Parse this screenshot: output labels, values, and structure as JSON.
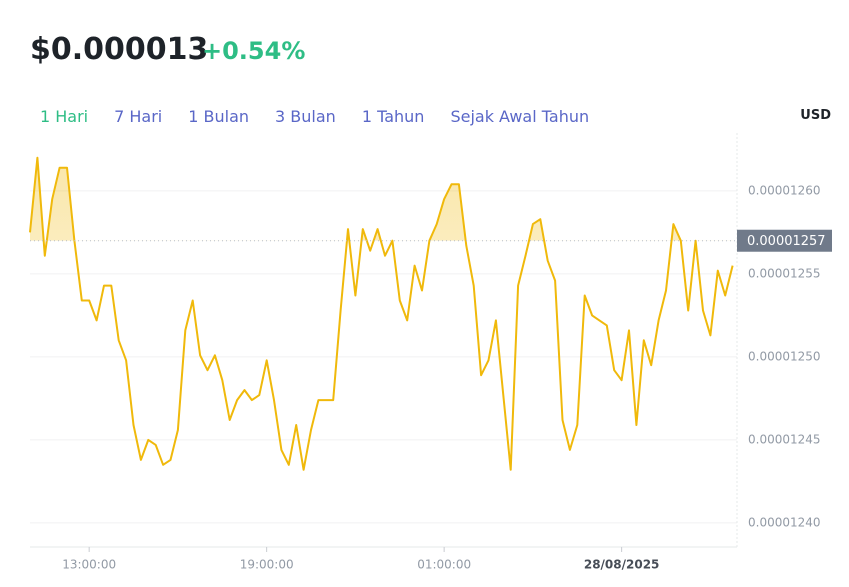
{
  "header": {
    "price": "$0.000013",
    "change": "+0.54%",
    "tabs": [
      "1 Hari",
      "7 Hari",
      "1 Bulan",
      "3 Bulan",
      "1 Tahun",
      "Sejak Awal Tahun"
    ],
    "currency": "USD"
  },
  "chart_data": {
    "type": "line",
    "color": "#f0b90b",
    "grid": true,
    "x": [
      11,
      11.25,
      11.5,
      11.75,
      12,
      12.25,
      12.5,
      12.75,
      13,
      13.25,
      13.5,
      13.75,
      14,
      14.25,
      14.5,
      14.75,
      15,
      15.25,
      15.5,
      15.75,
      16,
      16.25,
      16.5,
      16.75,
      17,
      17.25,
      17.5,
      17.75,
      18,
      18.25,
      18.5,
      18.75,
      19,
      19.25,
      19.5,
      19.75,
      20,
      20.25,
      20.5,
      20.75,
      21,
      21.25,
      21.5,
      21.75,
      22,
      22.25,
      22.5,
      22.75,
      23,
      23.25,
      23.5,
      23.75,
      24,
      24.25,
      24.5,
      24.75,
      25,
      25.25,
      25.5,
      25.75,
      26,
      26.25,
      26.5,
      26.75,
      27,
      27.25,
      27.5,
      27.75,
      28,
      28.25,
      28.5,
      28.75,
      29,
      29.25,
      29.5,
      29.75,
      30,
      30.25,
      30.5,
      30.75,
      31,
      31.25,
      31.5,
      31.75,
      32,
      32.25,
      32.5,
      32.75,
      33,
      33.25,
      33.5,
      33.75,
      34,
      34.25,
      34.5,
      34.75
    ],
    "values": [
      1.2575e-05,
      1.262e-05,
      1.2561e-05,
      1.2595e-05,
      1.2614e-05,
      1.2614e-05,
      1.257e-05,
      1.2534e-05,
      1.2534e-05,
      1.2522e-05,
      1.2543e-05,
      1.2543e-05,
      1.251e-05,
      1.2498e-05,
      1.2459e-05,
      1.2438e-05,
      1.245e-05,
      1.2447e-05,
      1.2435e-05,
      1.2438e-05,
      1.2456e-05,
      1.2516e-05,
      1.2534e-05,
      1.2501e-05,
      1.2492e-05,
      1.2501e-05,
      1.2486e-05,
      1.2462e-05,
      1.2474e-05,
      1.248e-05,
      1.2474e-05,
      1.2477e-05,
      1.2498e-05,
      1.2474e-05,
      1.2444e-05,
      1.2435e-05,
      1.2459e-05,
      1.2432e-05,
      1.2456e-05,
      1.2474e-05,
      1.2474e-05,
      1.2474e-05,
      1.2528e-05,
      1.2577e-05,
      1.2537e-05,
      1.2577e-05,
      1.2564e-05,
      1.2577e-05,
      1.2561e-05,
      1.257e-05,
      1.2534e-05,
      1.2522e-05,
      1.2555e-05,
      1.254e-05,
      1.257e-05,
      1.258e-05,
      1.2595e-05,
      1.2604e-05,
      1.2604e-05,
      1.2567e-05,
      1.2543e-05,
      1.2489e-05,
      1.2498e-05,
      1.2522e-05,
      1.2477e-05,
      1.2432e-05,
      1.2543e-05,
      1.2561e-05,
      1.258e-05,
      1.2583e-05,
      1.2558e-05,
      1.2546e-05,
      1.2462e-05,
      1.2444e-05,
      1.2459e-05,
      1.2537e-05,
      1.2525e-05,
      1.2522e-05,
      1.2519e-05,
      1.2492e-05,
      1.2486e-05,
      1.2516e-05,
      1.2459e-05,
      1.251e-05,
      1.2495e-05,
      1.2522e-05,
      1.254e-05,
      1.258e-05,
      1.257e-05,
      1.2528e-05,
      1.257e-05,
      1.2528e-05,
      1.2513e-05,
      1.2552e-05,
      1.2537e-05,
      1.2555e-05
    ],
    "xlim": [
      11,
      34.9
    ],
    "xticks": [
      {
        "value": 13,
        "label": "13:00:00"
      },
      {
        "value": 19,
        "label": "19:00:00"
      },
      {
        "value": 25,
        "label": "01:00:00"
      },
      {
        "value": 31,
        "label": "28/08/2025"
      }
    ],
    "ylim": [
      1.23855e-05,
      1.26349e-05
    ],
    "yticks": [
      {
        "value": 1.24e-05,
        "label": "0.00001240"
      },
      {
        "value": 1.245e-05,
        "label": "0.00001245"
      },
      {
        "value": 1.25e-05,
        "label": "0.00001250"
      },
      {
        "value": 1.255e-05,
        "label": "0.00001255"
      },
      {
        "value": 1.26e-05,
        "label": "0.00001260"
      }
    ],
    "current_price": {
      "value": 1.257e-05,
      "label": "0.00001257"
    }
  }
}
